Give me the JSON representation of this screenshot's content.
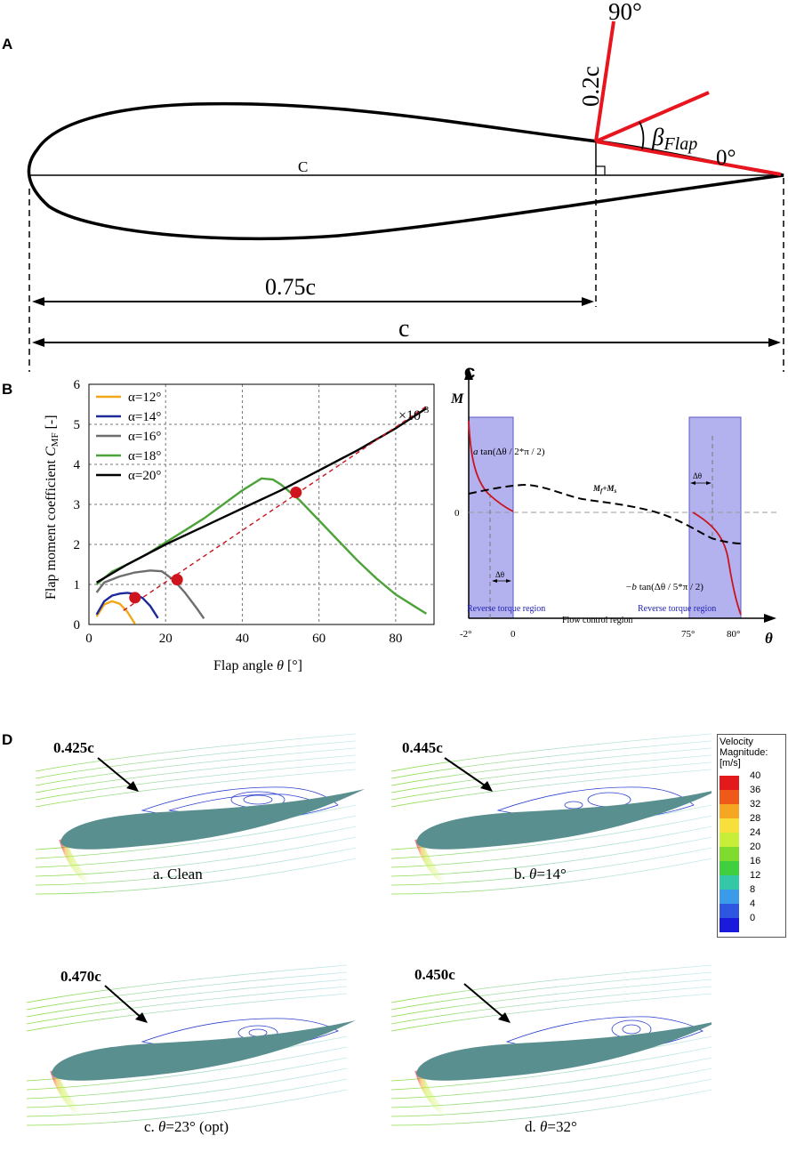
{
  "panel_a": {
    "label": "A",
    "chord_label": "C",
    "angle_90": "90°",
    "angle_0": "0°",
    "flap_length": "0.2c",
    "beta_symbol": "β",
    "beta_subscript": "Flap",
    "hinge_position": "0.75c",
    "chord_total": "c"
  },
  "panel_b": {
    "label": "B",
    "multiplier_base": "×10",
    "multiplier_exp": "-3",
    "ylabel_main": "Flap moment coefficient ",
    "ylabel_symbol": "C",
    "ylabel_sub": "MF",
    "ylabel_unit": " [-]",
    "xlabel_main": "Flap angle ",
    "xlabel_symbol": "θ",
    "xlabel_unit": " [°]",
    "legend": [
      "α=12°",
      "α=14°",
      "α=16°",
      "α=18°",
      "α=20°"
    ],
    "colors": [
      "#f0a818",
      "#1e2a9a",
      "#6e6e6e",
      "#4ea23a",
      "#000000"
    ],
    "ref_line_color": "#c8141e"
  },
  "chart_data": {
    "type": "line",
    "xlabel": "Flap angle θ [°]",
    "ylabel": "Flap moment coefficient C_MF [-] ×10^-3",
    "xlim": [
      0,
      90
    ],
    "ylim": [
      0,
      6
    ],
    "x_ticks": [
      0,
      20,
      40,
      60,
      80
    ],
    "y_ticks": [
      0,
      1,
      2,
      3,
      4,
      5,
      6
    ],
    "grid": true,
    "legend_position": "top-left",
    "series": [
      {
        "name": "α=12°",
        "x": [
          2,
          4,
          6,
          8,
          10,
          12
        ],
        "y": [
          0.2,
          0.5,
          0.58,
          0.52,
          0.32,
          0.02
        ]
      },
      {
        "name": "α=14°",
        "x": [
          2,
          4,
          6,
          8,
          10,
          12,
          14,
          16,
          18
        ],
        "y": [
          0.25,
          0.58,
          0.72,
          0.77,
          0.79,
          0.76,
          0.66,
          0.46,
          0.16
        ]
      },
      {
        "name": "α=16°",
        "x": [
          2,
          4,
          8,
          12,
          16,
          19,
          22,
          25,
          28,
          30
        ],
        "y": [
          0.8,
          1.05,
          1.2,
          1.3,
          1.35,
          1.33,
          1.12,
          0.8,
          0.42,
          0.15
        ]
      },
      {
        "name": "α=18°",
        "x": [
          2,
          6,
          10,
          15,
          20,
          25,
          30,
          35,
          40,
          45,
          48,
          50,
          55,
          60,
          65,
          70,
          75,
          80,
          85,
          88
        ],
        "y": [
          1.0,
          1.32,
          1.5,
          1.75,
          2.05,
          2.35,
          2.65,
          3.0,
          3.35,
          3.65,
          3.62,
          3.5,
          3.1,
          2.6,
          2.1,
          1.6,
          1.15,
          0.75,
          0.45,
          0.27
        ]
      },
      {
        "name": "α=20°",
        "x": [
          2,
          10,
          20,
          30,
          40,
          50,
          60,
          70,
          80,
          88
        ],
        "y": [
          1.05,
          1.5,
          2.0,
          2.45,
          2.9,
          3.35,
          3.85,
          4.35,
          4.9,
          5.4
        ]
      },
      {
        "name": "reference",
        "x": [
          9,
          88
        ],
        "y": [
          0.35,
          5.45
        ]
      }
    ],
    "highlight_points": [
      {
        "x": 12,
        "y": 0.67
      },
      {
        "x": 23,
        "y": 1.12
      },
      {
        "x": 54,
        "y": 3.3
      }
    ]
  },
  "panel_c": {
    "label": "C",
    "y_axis": "M",
    "x_axis": "θ",
    "zero": "0",
    "eq_left_pre": "a",
    "eq_left_post": " tan(Δθ / 2*π / 2)",
    "eq_right_pre": "−b",
    "eq_right_post": " tan(Δθ / 5*π / 2)",
    "mf_ms_m": "M",
    "mf_ms_f": "f",
    "mf_ms_plus": "+M",
    "mf_ms_s": "s",
    "delta_theta": "Δθ",
    "reverse_left": "Reverse torque region",
    "reverse_right": "Reverse torque region",
    "flow_control": "Flow control region",
    "xticks": [
      "-2°",
      "0",
      "75°",
      "80°"
    ]
  },
  "panel_d": {
    "label": "D",
    "subfigures": [
      {
        "separation": "0.425c",
        "caption": "a. Clean"
      },
      {
        "separation": "0.445c",
        "caption_pre": "b. ",
        "caption_theta": "θ",
        "caption_post": "=14°"
      },
      {
        "separation": "0.470c",
        "caption_pre": "c. ",
        "caption_theta": "θ",
        "caption_post": "=23° (opt)"
      },
      {
        "separation": "0.450c",
        "caption_pre": "d. ",
        "caption_theta": "θ",
        "caption_post": "=32°"
      }
    ],
    "colorbar": {
      "title": [
        "Velocity",
        "Magnitude:",
        "[m/s]"
      ],
      "levels": [
        "40",
        "36",
        "32",
        "28",
        "24",
        "20",
        "16",
        "12",
        "8",
        "4",
        "0"
      ],
      "colors": [
        "#e31a1c",
        "#f05a18",
        "#f5a623",
        "#f7e03c",
        "#c8ee3a",
        "#7fdc2e",
        "#3fcf3f",
        "#34c8a6",
        "#3b9be8",
        "#2e56e0",
        "#1a1adc"
      ]
    }
  }
}
